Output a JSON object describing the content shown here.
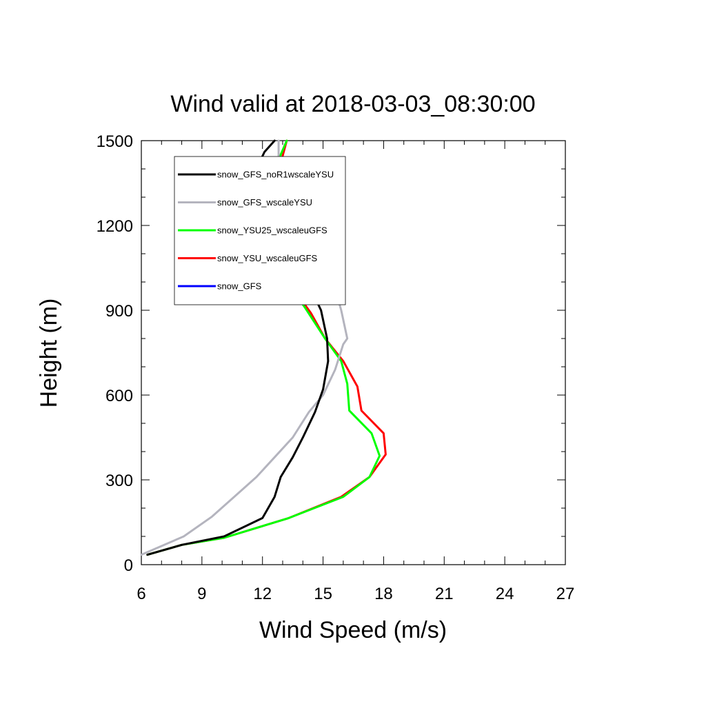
{
  "chart_data": {
    "type": "line",
    "title": "Wind valid at 2018-03-03_08:30:00",
    "xlabel": "Wind Speed (m/s)",
    "ylabel": "Height (m)",
    "xlim": [
      6,
      27
    ],
    "ylim": [
      0,
      1500
    ],
    "xticks": [
      "6",
      "9",
      "12",
      "15",
      "18",
      "21",
      "24",
      "27"
    ],
    "yticks": [
      "0",
      "300",
      "600",
      "900",
      "1200",
      "1500"
    ],
    "legend_position": "top-left",
    "series": [
      {
        "name": "snow_GFS_noR1wscaleYSU",
        "color": "#000000",
        "x": [
          6.3,
          8.0,
          10.1,
          12.0,
          12.6,
          12.9,
          13.5,
          14.0,
          14.6,
          15.0,
          15.25,
          15.2,
          14.9,
          14.3,
          13.8,
          13.0,
          12.0,
          11.8,
          11.9,
          12.1,
          12.6
        ],
        "y": [
          35,
          70,
          100,
          165,
          240,
          310,
          380,
          450,
          540,
          620,
          720,
          800,
          900,
          990,
          1080,
          1170,
          1280,
          1350,
          1430,
          1460,
          1500
        ]
      },
      {
        "name": "snow_GFS_wscaleYSU",
        "color": "#b4b4be",
        "x": [
          6.0,
          8.1,
          9.5,
          10.6,
          11.7,
          12.6,
          13.5,
          14.3,
          15.0,
          15.6,
          16.0,
          16.2,
          15.9,
          15.5,
          15.0,
          14.2,
          13.3,
          12.9,
          12.7,
          12.8,
          12.8
        ],
        "y": [
          35,
          100,
          170,
          240,
          310,
          380,
          450,
          540,
          600,
          690,
          780,
          800,
          900,
          1000,
          1060,
          1120,
          1200,
          1280,
          1360,
          1440,
          1500
        ]
      },
      {
        "name": "snow_YSU25_wscaleuGFS",
        "color": "#00ff00",
        "x": [
          6.3,
          8.0,
          10.1,
          13.3,
          16.0,
          17.3,
          17.8,
          17.4,
          16.3,
          16.2,
          15.9,
          15.1,
          14.1,
          13.3,
          12.6,
          12.1,
          12.0,
          12.2,
          12.6,
          13.2
        ],
        "y": [
          35,
          70,
          95,
          165,
          240,
          310,
          385,
          465,
          545,
          640,
          720,
          800,
          910,
          990,
          1080,
          1170,
          1280,
          1350,
          1400,
          1500
        ]
      },
      {
        "name": "snow_YSU_wscaleuGFS",
        "color": "#ff0000",
        "x": [
          6.3,
          8.0,
          10.1,
          13.3,
          15.9,
          17.3,
          18.1,
          18.0,
          16.9,
          16.7,
          16.0,
          15.1,
          14.4,
          13.5,
          12.6,
          12.2,
          12.1,
          12.4,
          12.9,
          13.2
        ],
        "y": [
          35,
          70,
          95,
          165,
          240,
          310,
          390,
          465,
          545,
          630,
          720,
          800,
          890,
          980,
          1080,
          1170,
          1280,
          1350,
          1420,
          1500
        ]
      },
      {
        "name": "snow_GFS",
        "color": "#0000ff",
        "x": [],
        "y": []
      }
    ]
  }
}
